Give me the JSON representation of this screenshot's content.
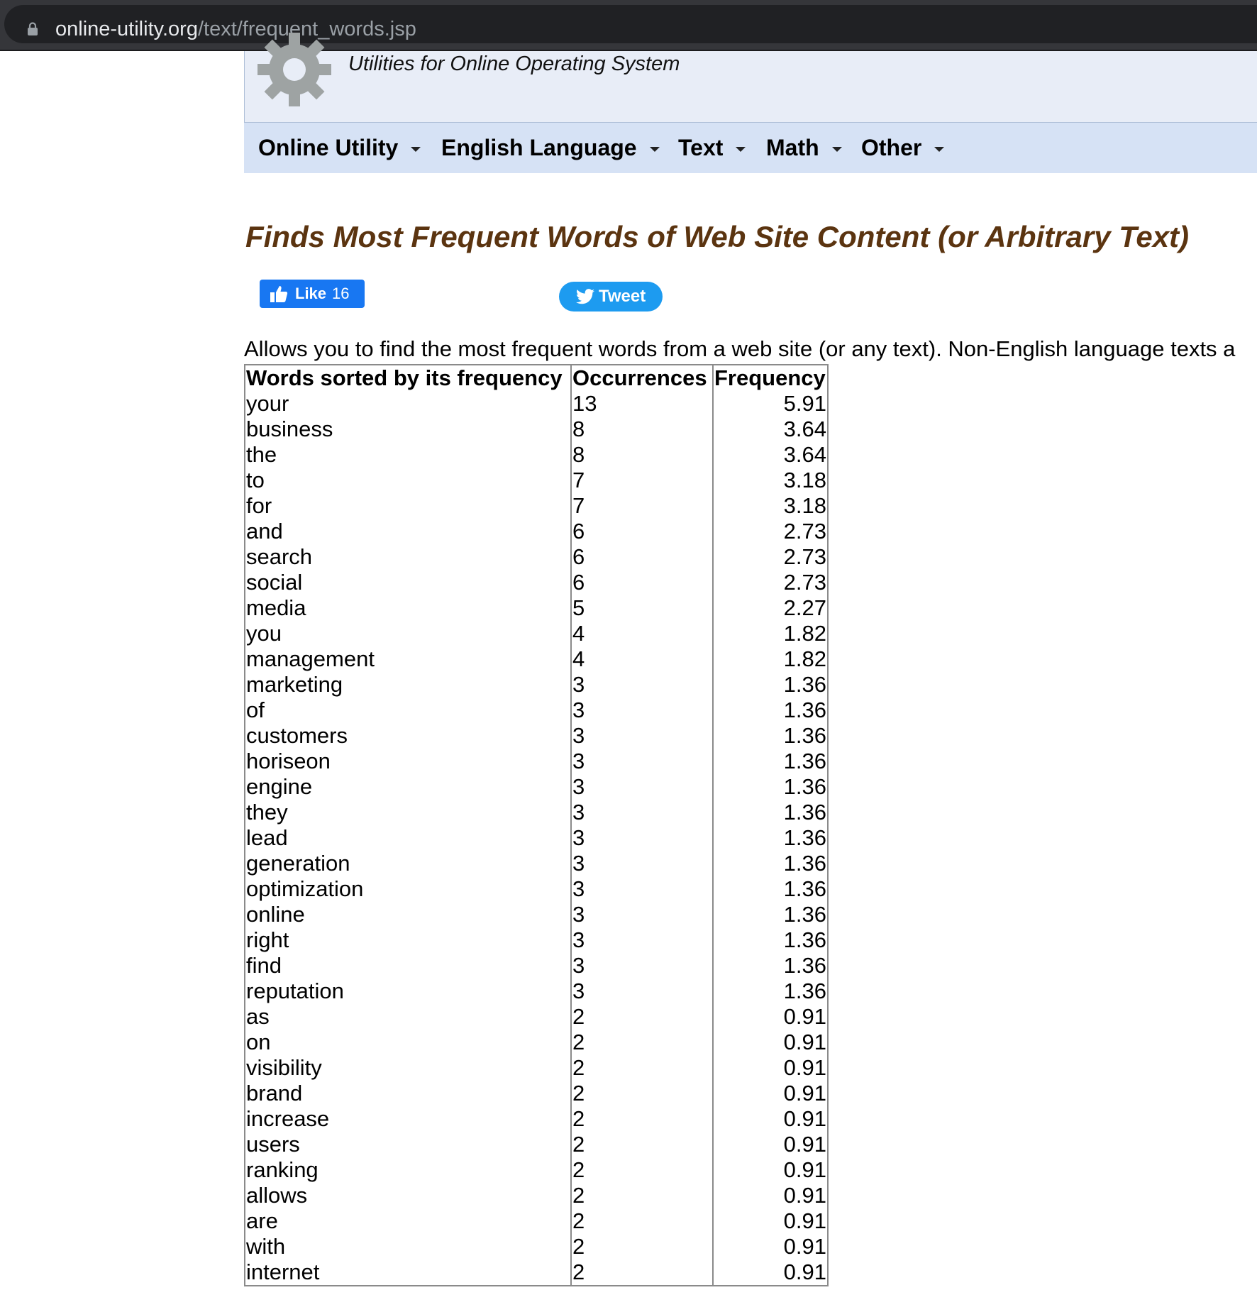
{
  "browser": {
    "url_domain": "online-utility.org",
    "url_path": "/text/frequent_words.jsp"
  },
  "header": {
    "tagline": "Utilities for Online Operating System"
  },
  "nav": {
    "items": [
      {
        "label": "Online Utility"
      },
      {
        "label": "English Language"
      },
      {
        "label": "Text"
      },
      {
        "label": "Math"
      },
      {
        "label": "Other"
      }
    ]
  },
  "main": {
    "title": "Finds Most Frequent Words of Web Site Content (or Arbitrary Text)",
    "like_label": "Like",
    "like_count": "16",
    "tweet_label": "Tweet",
    "description": "Allows you to find the most frequent words from a web site (or any text). Non-English language texts a"
  },
  "table": {
    "headers": [
      "Words sorted by its frequency",
      "Occurrences",
      "Frequency"
    ],
    "rows": [
      [
        "your",
        "13",
        "5.91"
      ],
      [
        "business",
        "8",
        "3.64"
      ],
      [
        "the",
        "8",
        "3.64"
      ],
      [
        "to",
        "7",
        "3.18"
      ],
      [
        "for",
        "7",
        "3.18"
      ],
      [
        "and",
        "6",
        "2.73"
      ],
      [
        "search",
        "6",
        "2.73"
      ],
      [
        "social",
        "6",
        "2.73"
      ],
      [
        "media",
        "5",
        "2.27"
      ],
      [
        "you",
        "4",
        "1.82"
      ],
      [
        "management",
        "4",
        "1.82"
      ],
      [
        "marketing",
        "3",
        "1.36"
      ],
      [
        "of",
        "3",
        "1.36"
      ],
      [
        "customers",
        "3",
        "1.36"
      ],
      [
        "horiseon",
        "3",
        "1.36"
      ],
      [
        "engine",
        "3",
        "1.36"
      ],
      [
        "they",
        "3",
        "1.36"
      ],
      [
        "lead",
        "3",
        "1.36"
      ],
      [
        "generation",
        "3",
        "1.36"
      ],
      [
        "optimization",
        "3",
        "1.36"
      ],
      [
        "online",
        "3",
        "1.36"
      ],
      [
        "right",
        "3",
        "1.36"
      ],
      [
        "find",
        "3",
        "1.36"
      ],
      [
        "reputation",
        "3",
        "1.36"
      ],
      [
        "as",
        "2",
        "0.91"
      ],
      [
        "on",
        "2",
        "0.91"
      ],
      [
        "visibility",
        "2",
        "0.91"
      ],
      [
        "brand",
        "2",
        "0.91"
      ],
      [
        "increase",
        "2",
        "0.91"
      ],
      [
        "users",
        "2",
        "0.91"
      ],
      [
        "ranking",
        "2",
        "0.91"
      ],
      [
        "allows",
        "2",
        "0.91"
      ],
      [
        "are",
        "2",
        "0.91"
      ],
      [
        "with",
        "2",
        "0.91"
      ],
      [
        "internet",
        "2",
        "0.91"
      ]
    ]
  }
}
